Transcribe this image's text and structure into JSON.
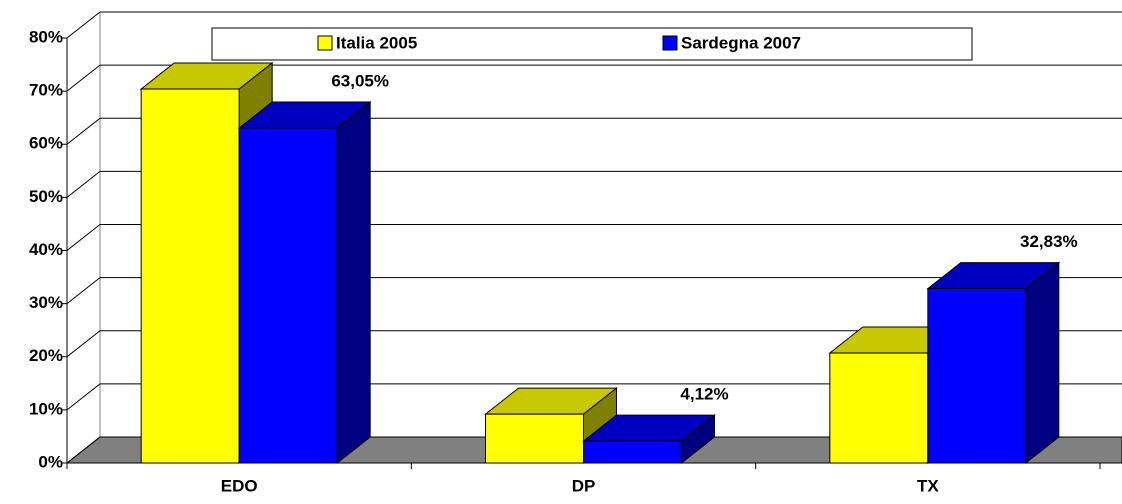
{
  "chart_data": {
    "type": "bar3d",
    "categories": [
      "EDO",
      "DP",
      "TX"
    ],
    "series": [
      {
        "name": "Italia 2005",
        "color": "#ffff00",
        "top_color": "#c8c800",
        "side_color": "#808000",
        "values": [
          70.4,
          9.2,
          20.7
        ]
      },
      {
        "name": "Sardegna 2007",
        "color": "#0000ff",
        "top_color": "#0000c0",
        "side_color": "#000080",
        "values": [
          63.05,
          4.12,
          32.83
        ],
        "value_labels": [
          "63,05%",
          "4,12%",
          "32,83%"
        ]
      }
    ],
    "ylim": [
      0,
      80
    ],
    "yticks": [
      {
        "value": 0,
        "label": "0%"
      },
      {
        "value": 10,
        "label": "10%"
      },
      {
        "value": 20,
        "label": "20%"
      },
      {
        "value": 30,
        "label": "30%"
      },
      {
        "value": 40,
        "label": "40%"
      },
      {
        "value": 50,
        "label": "50%"
      },
      {
        "value": 60,
        "label": "60%"
      },
      {
        "value": 70,
        "label": "70%"
      },
      {
        "value": 80,
        "label": "80%"
      }
    ],
    "grid": true,
    "legend": "top"
  }
}
